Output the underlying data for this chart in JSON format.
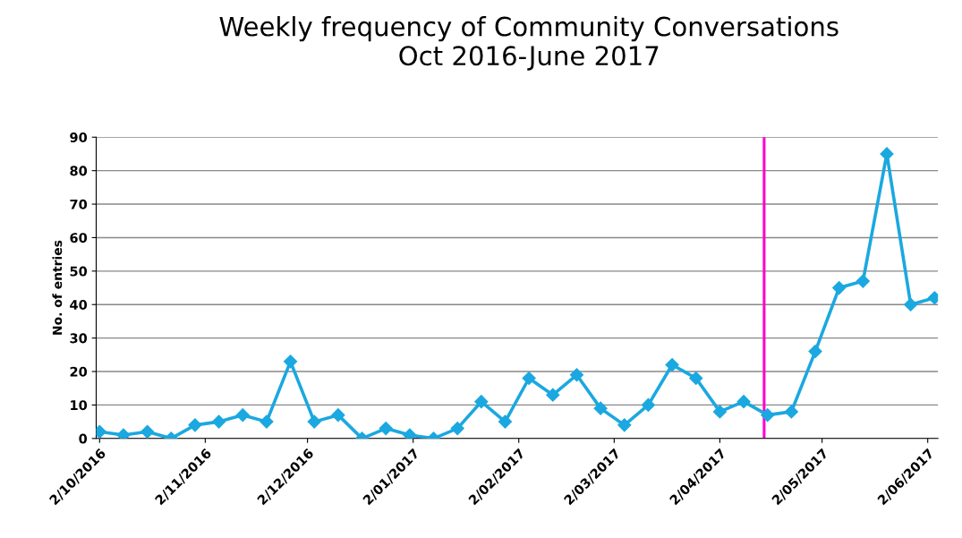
{
  "chart_data": {
    "type": "line",
    "title": "Weekly frequency of Community Conversations\nOct 2016-June 2017",
    "ylabel": "No. of entries",
    "x": [
      "2016-10-02",
      "2016-10-09",
      "2016-10-16",
      "2016-10-23",
      "2016-10-30",
      "2016-11-06",
      "2016-11-13",
      "2016-11-20",
      "2016-11-27",
      "2016-12-04",
      "2016-12-11",
      "2016-12-18",
      "2016-12-25",
      "2017-01-01",
      "2017-01-08",
      "2017-01-15",
      "2017-01-22",
      "2017-01-29",
      "2017-02-05",
      "2017-02-12",
      "2017-02-19",
      "2017-02-26",
      "2017-03-05",
      "2017-03-12",
      "2017-03-19",
      "2017-03-26",
      "2017-04-02",
      "2017-04-09",
      "2017-04-16",
      "2017-04-23",
      "2017-04-30",
      "2017-05-07",
      "2017-05-14",
      "2017-05-21",
      "2017-05-28",
      "2017-06-04"
    ],
    "series": [
      {
        "color": "#1ba8e0",
        "values": [
          2,
          1,
          2,
          0,
          4,
          5,
          7,
          5,
          23,
          5,
          7,
          0,
          3,
          1,
          0,
          3,
          11,
          5,
          18,
          13,
          19,
          9,
          4,
          10,
          22,
          18,
          8,
          11,
          7,
          8,
          26,
          45,
          47,
          85,
          40,
          42
        ]
      }
    ],
    "marker": "diamond",
    "line_style": "solid",
    "grid": "y",
    "ylim": [
      0,
      90
    ],
    "yticks": [
      0,
      10,
      20,
      30,
      40,
      50,
      60,
      70,
      80,
      90
    ],
    "xlim": [
      "2016-10-01",
      "2017-06-05"
    ],
    "xticks": [
      {
        "value": "2016-10-02",
        "label": "2/10/2016"
      },
      {
        "value": "2016-11-02",
        "label": "2/11/2016"
      },
      {
        "value": "2016-12-02",
        "label": "2/12/2016"
      },
      {
        "value": "2017-01-02",
        "label": "2/01/2017"
      },
      {
        "value": "2017-02-02",
        "label": "2/02/2017"
      },
      {
        "value": "2017-03-02",
        "label": "2/03/2017"
      },
      {
        "value": "2017-04-02",
        "label": "2/04/2017"
      },
      {
        "value": "2017-05-02",
        "label": "2/05/2017"
      },
      {
        "value": "2017-06-02",
        "label": "2/06/2017"
      }
    ],
    "ref_lines": [
      {
        "axis": "x",
        "value": "2017-04-15",
        "color": "#ff00cc",
        "line_style": "solid"
      }
    ]
  }
}
